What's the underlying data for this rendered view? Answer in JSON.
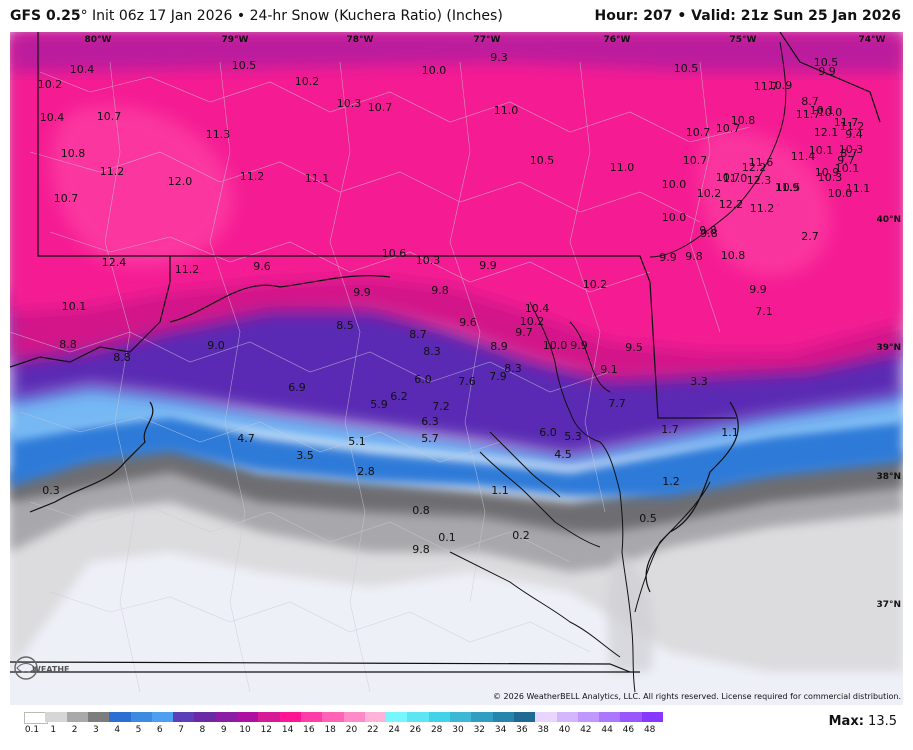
{
  "header": {
    "model": "GFS 0.25",
    "deg": "°",
    "init": "Init 06z 17 Jan 2026",
    "bullet": "•",
    "product": "24-hr Snow (Kuchera Ratio) (Inches)",
    "hour_label": "Hour:",
    "hour": "207",
    "valid_label": "Valid:",
    "valid": "21z Sun 25 Jan 2026"
  },
  "map": {
    "lon_ticks": [
      "80°W",
      "79°W",
      "78°W",
      "77°W",
      "76°W",
      "75°W",
      "74°W"
    ],
    "lat_ticks": [
      "40°N",
      "39°N",
      "38°N",
      "37°N"
    ],
    "values": [
      "10.4",
      "10.2",
      "10.4",
      "10.7",
      "10.8",
      "11.2",
      "10.7",
      "12.4",
      "10.1",
      "8.8",
      "8.8",
      "10.5",
      "11.3",
      "12.0",
      "11.2",
      "11.2",
      "9.0",
      "9.6",
      "10.2",
      "10.3",
      "10.7",
      "11.1",
      "10.0",
      "9.3",
      "11.0",
      "10.6",
      "10.3",
      "9.9",
      "9.9",
      "9.8",
      "8.5",
      "8.7",
      "8.3",
      "6.9",
      "6.2",
      "5.9",
      "6.0",
      "7.6",
      "7.9",
      "8.3",
      "8.9",
      "9.7",
      "9.6",
      "10.4",
      "10.2",
      "10.2",
      "10.0",
      "9.9",
      "9.5",
      "9.1",
      "7.7",
      "7.2",
      "6.3",
      "5.7",
      "6.0",
      "5.3",
      "4.5",
      "4.7",
      "3.5",
      "5.1",
      "2.8",
      "10.5",
      "10.8",
      "10.7",
      "10.7",
      "10.5",
      "11.0",
      "10.0",
      "10.0",
      "9.9",
      "9.8",
      "9.8",
      "9.8",
      "10.7",
      "10.2",
      "10.7",
      "11.0",
      "11.6",
      "11.7",
      "10.9",
      "9.9",
      "10.5",
      "10.0",
      "11.7",
      "12.1",
      "11.7",
      "12.2",
      "12.3",
      "11.2",
      "11.9",
      "12.2",
      "11.4",
      "10.5",
      "10.9",
      "10.1",
      "10.3",
      "10.1",
      "9.7",
      "10.3",
      "10.0",
      "9.4",
      "8.7",
      "8.7",
      "10.1",
      "11.2",
      "11.1",
      "10.8",
      "9.9",
      "7.1",
      "2.7",
      "3.3",
      "1.7",
      "1.1",
      "1.1",
      "1.2",
      "0.8",
      "0.5",
      "0.3",
      "0.2",
      "0.1",
      "9.8"
    ]
  },
  "legend": {
    "labels": [
      "0.1",
      "1",
      "2",
      "3",
      "4",
      "5",
      "6",
      "7",
      "8",
      "9",
      "10",
      "12",
      "14",
      "16",
      "18",
      "20",
      "22",
      "24",
      "26",
      "28",
      "30",
      "32",
      "34",
      "36",
      "38",
      "40",
      "42",
      "44",
      "46",
      "48"
    ],
    "colors": [
      "#ffffff",
      "#d6d6d6",
      "#a9a9a9",
      "#7d7d7d",
      "#2b6fd2",
      "#3c8be0",
      "#4d9ff0",
      "#5c3fb8",
      "#6a2aa6",
      "#8a1ca6",
      "#ad10a0",
      "#d61a96",
      "#ff1493",
      "#ff3ca8",
      "#ff63b8",
      "#ff8ac8",
      "#ffb3d9",
      "#76f6ff",
      "#5be6f2",
      "#41d4e8",
      "#3bb8d4",
      "#2f9ec0",
      "#2784aa",
      "#1f6a94",
      "#e8d6ff",
      "#d4b6ff",
      "#c096ff",
      "#ac76ff",
      "#9956ff",
      "#8636ff"
    ]
  },
  "footer": {
    "copyright": "© 2026 WeatherBELL Analytics, LLC. All rights reserved. License required for commercial distribution.",
    "max_label": "Max:",
    "max_value": "13.5"
  }
}
